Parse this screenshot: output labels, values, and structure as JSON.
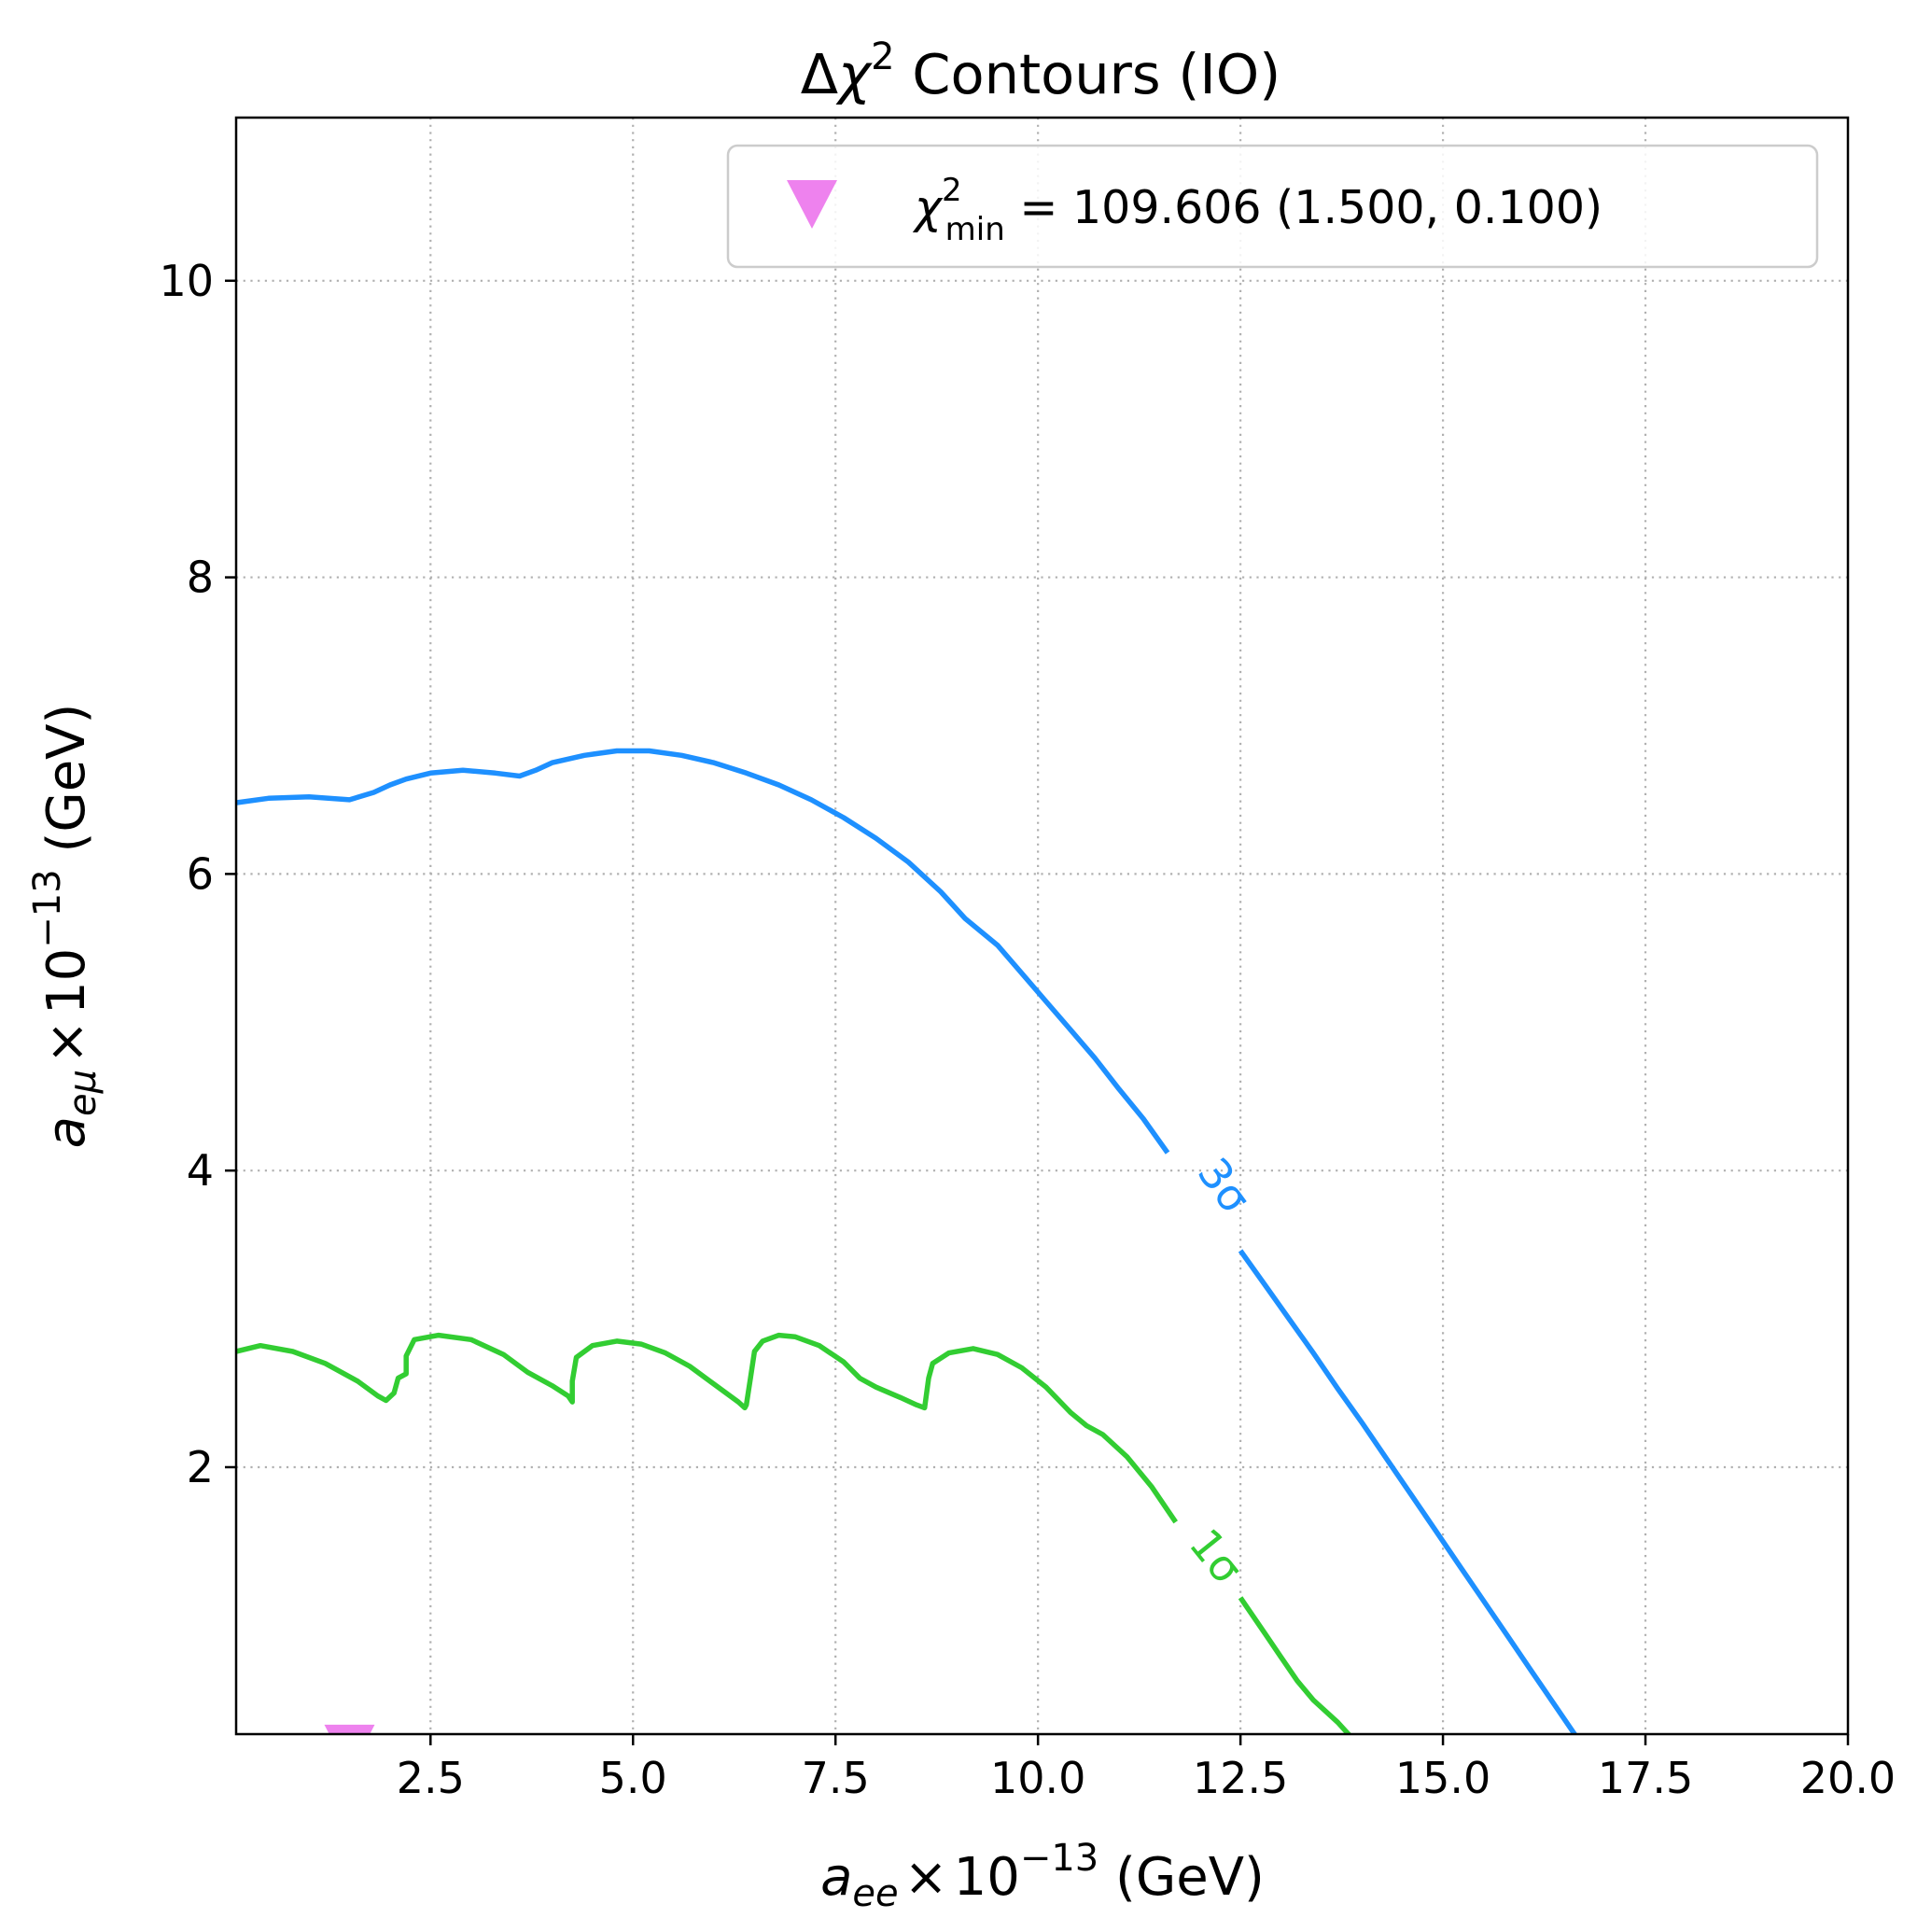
{
  "chart_data": {
    "type": "line",
    "title": {
      "pre": "Δ",
      "chi": "χ",
      "sup": "2",
      "post": " Contours (IO)"
    },
    "xlabel": {
      "var": "a",
      "sub": "ee",
      "times": "×",
      "base": "10",
      "exp": "−13",
      "unit": " (GeV)"
    },
    "ylabel": {
      "var": "a",
      "sub": "eμ",
      "times": "×",
      "base": "10",
      "exp": "−13",
      "unit": " (GeV)"
    },
    "xlim": [
      0.1,
      20.0
    ],
    "ylim": [
      0.2,
      11.1
    ],
    "xticks": [
      2.5,
      5.0,
      7.5,
      10.0,
      12.5,
      15.0,
      17.5,
      20.0
    ],
    "xtick_labels": [
      "2.5",
      "5.0",
      "7.5",
      "10.0",
      "12.5",
      "15.0",
      "17.5",
      "20.0"
    ],
    "yticks": [
      2,
      4,
      6,
      8,
      10
    ],
    "ytick_labels": [
      "2",
      "4",
      "6",
      "8",
      "10"
    ],
    "grid": true,
    "legend": {
      "placement": "upper right",
      "entries": [
        {
          "marker": "triangle-down",
          "color": "#ee82ee",
          "chi": "χ",
          "sup": "2",
          "sub": "min",
          "text": " = 109.606 (1.500, 0.100)"
        }
      ]
    },
    "minimum_point": {
      "x": 1.5,
      "y": 0.1,
      "color": "#ee82ee",
      "marker": "triangle-down"
    },
    "series": [
      {
        "label": "1σ",
        "color": "#32cd32",
        "label_position": [
          12.2,
          1.4
        ],
        "x": [
          0.1,
          0.4,
          0.8,
          1.2,
          1.6,
          1.85,
          1.95,
          2.05,
          2.1,
          2.2,
          2.2,
          2.3,
          2.6,
          3.0,
          3.4,
          3.7,
          4.0,
          4.2,
          4.25,
          4.25,
          4.3,
          4.5,
          4.8,
          5.1,
          5.4,
          5.7,
          6.0,
          6.3,
          6.38,
          6.4,
          6.45,
          6.5,
          6.6,
          6.8,
          7.0,
          7.3,
          7.6,
          7.8,
          8.0,
          8.3,
          8.5,
          8.6,
          8.65,
          8.7,
          8.9,
          9.2,
          9.5,
          9.8,
          10.1,
          10.4,
          10.6,
          10.8,
          11.1,
          11.4,
          11.7,
          11.9,
          12.2,
          12.5,
          12.8,
          13.0,
          13.2,
          13.4,
          13.7,
          14.0
        ],
        "y": [
          2.78,
          2.82,
          2.78,
          2.7,
          2.58,
          2.48,
          2.45,
          2.5,
          2.6,
          2.63,
          2.75,
          2.86,
          2.89,
          2.86,
          2.76,
          2.64,
          2.55,
          2.48,
          2.44,
          2.58,
          2.74,
          2.82,
          2.85,
          2.83,
          2.77,
          2.68,
          2.56,
          2.44,
          2.4,
          2.42,
          2.6,
          2.78,
          2.85,
          2.89,
          2.88,
          2.82,
          2.71,
          2.6,
          2.54,
          2.47,
          2.42,
          2.4,
          2.6,
          2.7,
          2.77,
          2.8,
          2.76,
          2.67,
          2.54,
          2.37,
          2.28,
          2.22,
          2.07,
          1.87,
          1.63,
          1.45,
          1.3,
          1.12,
          0.88,
          0.72,
          0.56,
          0.43,
          0.28,
          0.1
        ]
      },
      {
        "label": "3σ",
        "color": "#1e90ff",
        "label_position": [
          12.3,
          3.9
        ],
        "x": [
          0.1,
          0.5,
          1.0,
          1.5,
          1.8,
          2.0,
          2.2,
          2.5,
          2.9,
          3.3,
          3.6,
          3.8,
          4.0,
          4.4,
          4.8,
          5.2,
          5.6,
          6.0,
          6.4,
          6.8,
          7.2,
          7.6,
          8.0,
          8.4,
          8.8,
          9.1,
          9.5,
          9.8,
          10.1,
          10.4,
          10.7,
          11.0,
          11.3,
          11.6,
          11.9,
          12.2,
          12.5,
          12.8,
          13.1,
          13.4,
          13.7,
          14.0,
          14.3,
          14.6,
          14.9,
          15.2,
          15.5,
          15.8,
          16.1,
          16.4,
          16.7,
          17.0
        ],
        "y": [
          6.48,
          6.51,
          6.52,
          6.5,
          6.55,
          6.6,
          6.64,
          6.68,
          6.7,
          6.68,
          6.66,
          6.7,
          6.75,
          6.8,
          6.83,
          6.83,
          6.8,
          6.75,
          6.68,
          6.6,
          6.5,
          6.38,
          6.24,
          6.08,
          5.88,
          5.7,
          5.52,
          5.33,
          5.14,
          4.95,
          4.76,
          4.55,
          4.35,
          4.12,
          3.9,
          3.68,
          3.46,
          3.23,
          3.0,
          2.77,
          2.53,
          2.3,
          2.06,
          1.82,
          1.58,
          1.34,
          1.1,
          0.86,
          0.62,
          0.38,
          0.14,
          -0.1
        ]
      }
    ]
  }
}
